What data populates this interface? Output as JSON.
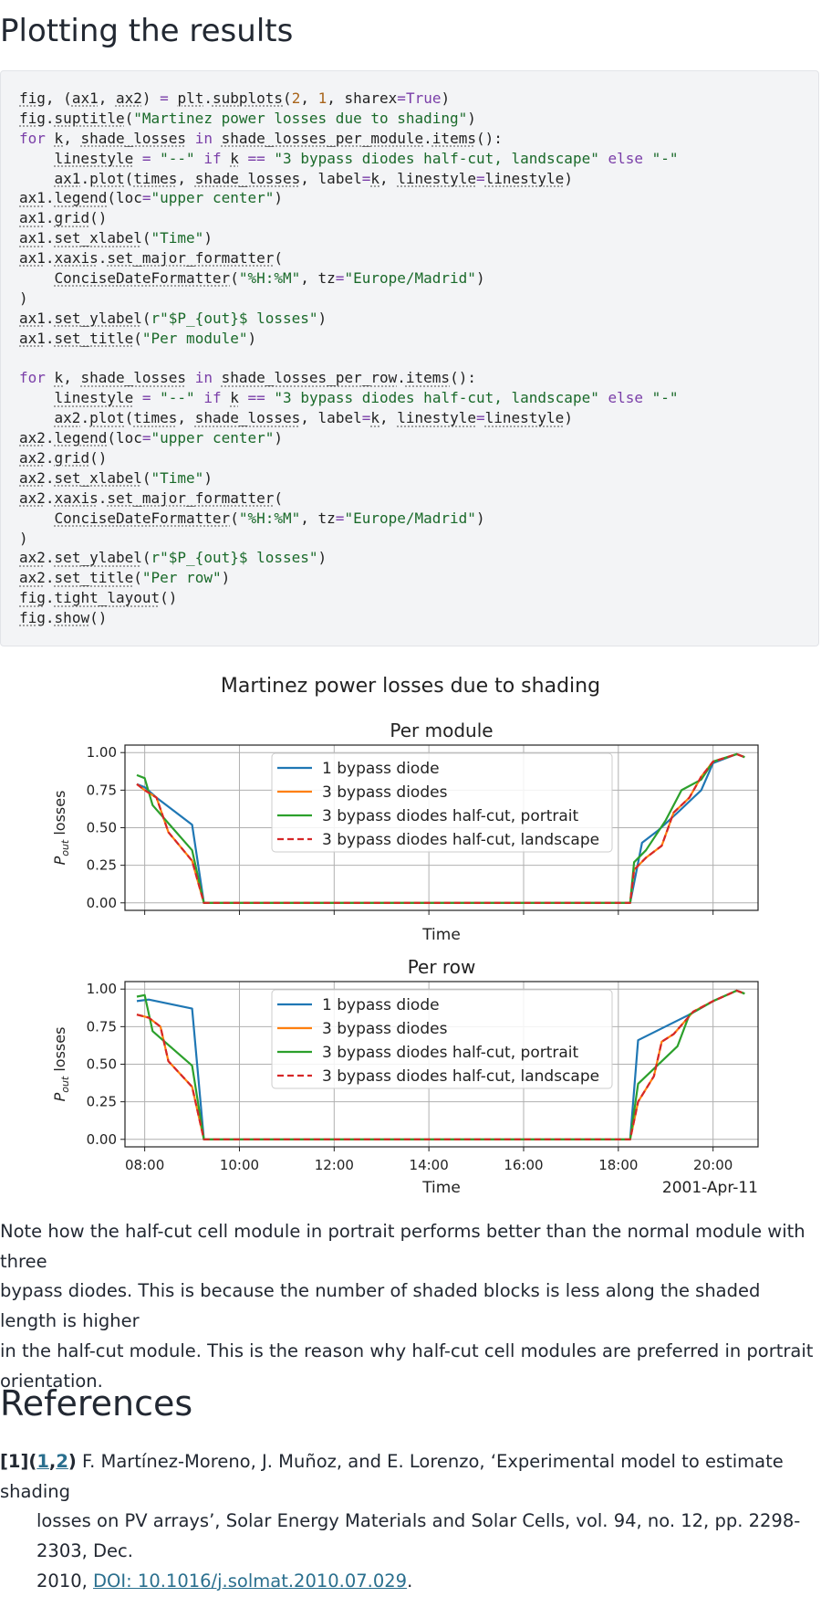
{
  "headings": {
    "plotting": "Plotting the results",
    "references": "References"
  },
  "code": [
    "fig, (ax1, ax2) = plt.subplots(2, 1, sharex=True)",
    "fig.suptitle(\"Martinez power losses due to shading\")",
    "for k, shade_losses in shade_losses_per_module.items():",
    "    linestyle = \"--\" if k == \"3 bypass diodes half-cut, landscape\" else \"-\"",
    "    ax1.plot(times, shade_losses, label=k, linestyle=linestyle)",
    "ax1.legend(loc=\"upper center\")",
    "ax1.grid()",
    "ax1.set_xlabel(\"Time\")",
    "ax1.xaxis.set_major_formatter(",
    "    ConciseDateFormatter(\"%H:%M\", tz=\"Europe/Madrid\")",
    ")",
    "ax1.set_ylabel(r\"$P_{out}$ losses\")",
    "ax1.set_title(\"Per module\")",
    "",
    "for k, shade_losses in shade_losses_per_row.items():",
    "    linestyle = \"--\" if k == \"3 bypass diodes half-cut, landscape\" else \"-\"",
    "    ax2.plot(times, shade_losses, label=k, linestyle=linestyle)",
    "ax2.legend(loc=\"upper center\")",
    "ax2.grid()",
    "ax2.set_xlabel(\"Time\")",
    "ax2.xaxis.set_major_formatter(",
    "    ConciseDateFormatter(\"%H:%M\", tz=\"Europe/Madrid\")",
    ")",
    "ax2.set_ylabel(r\"$P_{out}$ losses\")",
    "ax2.set_title(\"Per row\")",
    "fig.tight_layout()",
    "fig.show()"
  ],
  "chart_data": {
    "type": "line",
    "title": "Martinez power losses due to shading",
    "date_label": "2001-Apr-11",
    "xticks": [
      "08:00",
      "10:00",
      "12:00",
      "14:00",
      "16:00",
      "18:00",
      "20:00"
    ],
    "xlim": [
      "07:35",
      "20:57"
    ],
    "ylim": [
      -0.05,
      1.05
    ],
    "yticks": [
      "0.00",
      "0.25",
      "0.50",
      "0.75",
      "1.00"
    ],
    "ylabel": "P_out losses",
    "grid": true,
    "legend_placement": "upper center",
    "series_styles": [
      {
        "name": "1 bypass diode",
        "color": "#1f77b4",
        "dash": false
      },
      {
        "name": "3 bypass diodes",
        "color": "#ff7f0e",
        "dash": false
      },
      {
        "name": "3 bypass diodes half-cut, portrait",
        "color": "#2ca02c",
        "dash": false
      },
      {
        "name": "3 bypass diodes half-cut, landscape",
        "color": "#d62728",
        "dash": true
      }
    ],
    "panels": [
      {
        "title": "Per module",
        "xlabel": "Time",
        "series": [
          {
            "name": "1 bypass diode",
            "x": [
              "07:50",
              "08:00",
              "08:15",
              "09:00",
              "09:15",
              "18:15",
              "18:30",
              "18:50",
              "19:15",
              "19:45",
              "20:00",
              "20:30",
              "20:40"
            ],
            "y": [
              0.79,
              0.77,
              0.7,
              0.52,
              0,
              0,
              0.4,
              0.48,
              0.6,
              0.75,
              0.93,
              0.99,
              0.97
            ]
          },
          {
            "name": "3 bypass diodes",
            "x": [
              "07:50",
              "08:00",
              "08:15",
              "08:30",
              "09:00",
              "09:15",
              "18:15",
              "18:20",
              "18:35",
              "18:55",
              "19:10",
              "19:30",
              "19:45",
              "20:00",
              "20:30",
              "20:40"
            ],
            "y": [
              0.79,
              0.75,
              0.7,
              0.47,
              0.28,
              0,
              0,
              0.22,
              0.3,
              0.38,
              0.6,
              0.7,
              0.84,
              0.94,
              0.99,
              0.97
            ]
          },
          {
            "name": "3 bypass diodes half-cut, portrait",
            "x": [
              "07:50",
              "08:00",
              "08:10",
              "08:35",
              "09:00",
              "09:15",
              "18:15",
              "18:20",
              "18:35",
              "19:00",
              "19:20",
              "19:45",
              "20:00",
              "20:30",
              "20:40"
            ],
            "y": [
              0.85,
              0.83,
              0.65,
              0.5,
              0.35,
              0,
              0,
              0.27,
              0.35,
              0.55,
              0.75,
              0.82,
              0.94,
              0.99,
              0.97
            ]
          },
          {
            "name": "3 bypass diodes half-cut, landscape",
            "x": [
              "07:50",
              "08:00",
              "08:15",
              "08:30",
              "09:00",
              "09:15",
              "18:15",
              "18:20",
              "18:35",
              "18:55",
              "19:10",
              "19:30",
              "19:45",
              "20:00",
              "20:30",
              "20:40"
            ],
            "y": [
              0.79,
              0.75,
              0.7,
              0.47,
              0.28,
              0,
              0,
              0.22,
              0.3,
              0.38,
              0.6,
              0.7,
              0.84,
              0.94,
              0.99,
              0.97
            ]
          }
        ]
      },
      {
        "title": "Per row",
        "xlabel": "Time",
        "series": [
          {
            "name": "1 bypass diode",
            "x": [
              "07:50",
              "08:05",
              "09:00",
              "09:15",
              "18:15",
              "18:25",
              "19:30",
              "20:00",
              "20:30",
              "20:40"
            ],
            "y": [
              0.92,
              0.93,
              0.87,
              0,
              0,
              0.66,
              0.83,
              0.92,
              0.99,
              0.97
            ]
          },
          {
            "name": "3 bypass diodes",
            "x": [
              "07:50",
              "08:05",
              "08:20",
              "08:30",
              "09:00",
              "09:15",
              "18:15",
              "18:25",
              "18:45",
              "18:55",
              "19:10",
              "19:35",
              "20:00",
              "20:30",
              "20:40"
            ],
            "y": [
              0.83,
              0.81,
              0.75,
              0.52,
              0.35,
              0,
              0,
              0.25,
              0.42,
              0.65,
              0.7,
              0.85,
              0.92,
              0.99,
              0.97
            ]
          },
          {
            "name": "3 bypass diodes half-cut, portrait",
            "x": [
              "07:50",
              "08:00",
              "08:10",
              "09:00",
              "09:15",
              "18:15",
              "18:25",
              "19:15",
              "19:30",
              "20:00",
              "20:30",
              "20:40"
            ],
            "y": [
              0.95,
              0.96,
              0.72,
              0.49,
              0,
              0,
              0.37,
              0.62,
              0.83,
              0.92,
              0.99,
              0.97
            ]
          },
          {
            "name": "3 bypass diodes half-cut, landscape",
            "x": [
              "07:50",
              "08:05",
              "08:20",
              "08:30",
              "09:00",
              "09:15",
              "18:15",
              "18:25",
              "18:45",
              "18:55",
              "19:10",
              "19:35",
              "20:00",
              "20:30",
              "20:40"
            ],
            "y": [
              0.83,
              0.81,
              0.75,
              0.52,
              0.35,
              0,
              0,
              0.25,
              0.42,
              0.65,
              0.7,
              0.85,
              0.92,
              0.99,
              0.97
            ]
          }
        ]
      }
    ]
  },
  "paragraph": [
    "Note how the half-cut cell module in portrait performs better than the normal module with three",
    "bypass diodes. This is because the number of shaded blocks is less along the shaded length is higher",
    "in the half-cut module. This is the reason why half-cut cell modules are preferred in portrait",
    "orientation."
  ],
  "reference": {
    "label_open": "[1](",
    "link1": "1",
    "comma": ",",
    "link2": "2",
    "label_close": ")",
    "line1": "F. Martínez-Moreno, J. Muñoz, and E. Lorenzo, ‘Experimental model to estimate shading",
    "line2": "losses on PV arrays’, Solar Energy Materials and Solar Cells, vol. 94, no. 12, pp. 2298-2303, Dec.",
    "line3_prefix": "2010, ",
    "doi_link": "DOI: 10.1016/j.solmat.2010.07.029",
    "line3_suffix": "."
  }
}
